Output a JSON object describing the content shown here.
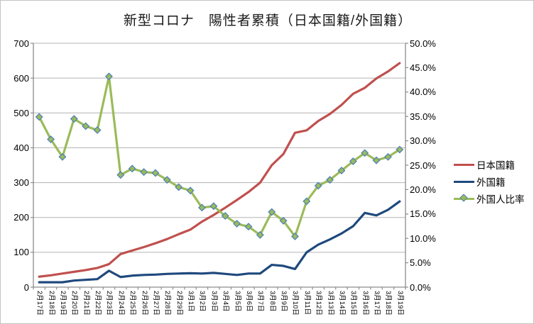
{
  "window": {
    "background": "#ffffff",
    "border_color": "#c3c3c3"
  },
  "chart_data": {
    "type": "line",
    "title": "新型コロナ　陽性者累積（日本国籍/外国籍）",
    "grid": true,
    "legend_position": "right",
    "categories": [
      "2月17日",
      "2月18日",
      "2月19日",
      "2月20日",
      "2月21日",
      "2月22日",
      "2月23日",
      "2月24日",
      "2月25日",
      "2月26日",
      "2月27日",
      "2月28日",
      "2月29日",
      "3月1日",
      "3月2日",
      "3月3日",
      "3月4日",
      "3月5日",
      "3月6日",
      "3月7日",
      "3月8日",
      "3月9日",
      "3月10日",
      "3月11日",
      "3月12日",
      "3月13日",
      "3月14日",
      "3月15日",
      "3月16日",
      "3月17日",
      "3月18日",
      "3月19日"
    ],
    "series": [
      {
        "name": "日本国籍",
        "axis": "left",
        "color": "#C0504D",
        "marker": "none",
        "values": [
          30,
          34,
          39,
          44,
          49,
          55,
          66,
          95,
          105,
          115,
          126,
          138,
          152,
          165,
          188,
          207,
          228,
          250,
          273,
          300,
          350,
          382,
          443,
          450,
          477,
          497,
          523,
          555,
          572,
          599,
          619,
          643
        ]
      },
      {
        "name": "外国籍",
        "axis": "left",
        "color": "#1F497D",
        "marker": "none",
        "values": [
          14,
          14,
          14,
          19,
          21,
          23,
          47,
          29,
          33,
          35,
          36,
          38,
          39,
          40,
          39,
          41,
          38,
          35,
          39,
          39,
          64,
          61,
          52,
          100,
          122,
          137,
          154,
          175,
          213,
          206,
          222,
          246
        ]
      },
      {
        "name": "外国人比率",
        "axis": "right",
        "color": "#9BBB59",
        "marker": "diamond",
        "marker_border": "#4A7EBB",
        "values": [
          34.9,
          30.3,
          26.7,
          34.5,
          33.0,
          32.2,
          43.2,
          23.0,
          24.3,
          23.6,
          23.4,
          22.0,
          20.5,
          19.8,
          16.3,
          16.6,
          14.6,
          13.0,
          12.4,
          10.7,
          15.4,
          13.6,
          10.4,
          17.6,
          20.8,
          22.0,
          23.9,
          25.8,
          27.5,
          26.0,
          26.7,
          28.2
        ]
      }
    ],
    "left_axis": {
      "min": 0,
      "max": 700,
      "step": 100,
      "ticks": [
        "0",
        "100",
        "200",
        "300",
        "400",
        "500",
        "600",
        "700"
      ]
    },
    "right_axis": {
      "min": 0,
      "max": 50,
      "step": 5,
      "ticks": [
        "0.0%",
        "5.0%",
        "10.0%",
        "15.0%",
        "20.0%",
        "25.0%",
        "30.0%",
        "35.0%",
        "40.0%",
        "45.0%",
        "50.0%"
      ]
    },
    "colors": {
      "gridline": "#B3B3B3",
      "axis_line": "#8C8C8C",
      "text": "#000000"
    }
  }
}
